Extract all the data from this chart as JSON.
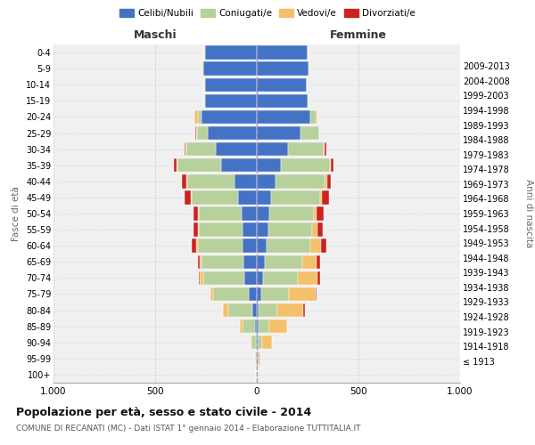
{
  "age_groups": [
    "100+",
    "95-99",
    "90-94",
    "85-89",
    "80-84",
    "75-79",
    "70-74",
    "65-69",
    "60-64",
    "55-59",
    "50-54",
    "45-49",
    "40-44",
    "35-39",
    "30-34",
    "25-29",
    "20-24",
    "15-19",
    "10-14",
    "5-9",
    "0-4"
  ],
  "birth_years": [
    "≤ 1913",
    "1914-1918",
    "1919-1923",
    "1924-1928",
    "1929-1933",
    "1934-1938",
    "1939-1943",
    "1944-1948",
    "1949-1953",
    "1954-1958",
    "1959-1963",
    "1964-1968",
    "1969-1973",
    "1974-1978",
    "1979-1983",
    "1984-1988",
    "1989-1993",
    "1994-1998",
    "1999-2003",
    "2004-2008",
    "2009-2013"
  ],
  "maschi": {
    "celibi": [
      2,
      3,
      5,
      10,
      20,
      40,
      60,
      65,
      70,
      70,
      75,
      90,
      110,
      175,
      200,
      240,
      270,
      255,
      255,
      265,
      255
    ],
    "coniugati": [
      2,
      5,
      20,
      60,
      120,
      175,
      205,
      205,
      220,
      215,
      210,
      230,
      230,
      215,
      145,
      55,
      20,
      2,
      2,
      2,
      2
    ],
    "vedovi": [
      0,
      2,
      5,
      15,
      25,
      15,
      15,
      10,
      10,
      5,
      5,
      5,
      5,
      5,
      5,
      5,
      15,
      0,
      0,
      0,
      0
    ],
    "divorziati": [
      0,
      0,
      0,
      0,
      0,
      0,
      5,
      10,
      20,
      20,
      20,
      30,
      25,
      15,
      5,
      2,
      0,
      0,
      0,
      0,
      0
    ]
  },
  "femmine": {
    "nubili": [
      2,
      2,
      5,
      8,
      10,
      20,
      30,
      40,
      50,
      55,
      60,
      70,
      90,
      120,
      155,
      215,
      265,
      250,
      245,
      255,
      250
    ],
    "coniugate": [
      2,
      5,
      20,
      55,
      90,
      140,
      170,
      185,
      215,
      215,
      220,
      240,
      245,
      240,
      175,
      90,
      30,
      5,
      2,
      2,
      2
    ],
    "vedove": [
      2,
      10,
      50,
      85,
      130,
      130,
      100,
      70,
      50,
      30,
      15,
      10,
      10,
      5,
      5,
      2,
      2,
      0,
      0,
      0,
      0
    ],
    "divorziate": [
      0,
      0,
      0,
      0,
      5,
      5,
      10,
      15,
      25,
      25,
      35,
      35,
      20,
      10,
      5,
      2,
      0,
      0,
      0,
      0,
      0
    ]
  },
  "colors": {
    "celibi_nubili": "#4472c4",
    "coniugati": "#b8d09b",
    "vedovi": "#f5c06a",
    "divorziati": "#cc2222"
  },
  "title": "Popolazione per età, sesso e stato civile - 2014",
  "subtitle": "COMUNE DI RECANATI (MC) - Dati ISTAT 1° gennaio 2014 - Elaborazione TUTTITALIA.IT",
  "xlabel_maschi": "Maschi",
  "xlabel_femmine": "Femmine",
  "ylabel": "Fasce di età",
  "ylabel_right": "Anni di nascita",
  "xlim": 1000,
  "background_color": "#ffffff",
  "grid_color": "#cccccc",
  "legend_labels": [
    "Celibi/Nubili",
    "Coniugati/e",
    "Vedovi/e",
    "Divorziati/e"
  ]
}
